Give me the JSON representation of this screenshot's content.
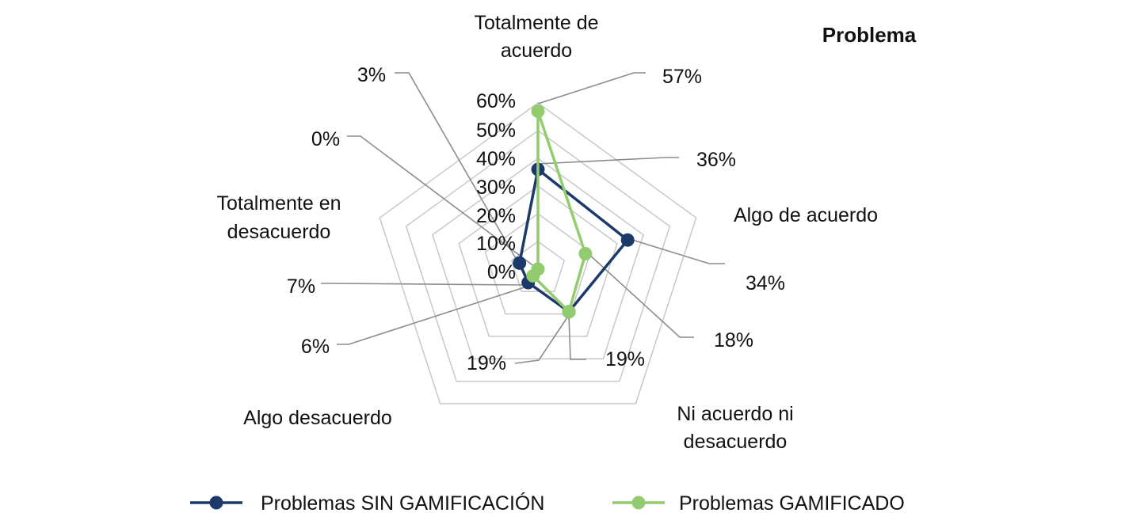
{
  "chart_data": {
    "type": "radar",
    "title": "Problema",
    "categories": [
      "Totalmente de acuerdo",
      "Algo de acuerdo",
      "Ni acuerdo ni desacuerdo",
      "Algo desacuerdo",
      "Totalmente en desacuerdo"
    ],
    "series": [
      {
        "name": "Problemas SIN GAMIFICACIÓN",
        "values": [
          36,
          34,
          19,
          6,
          7
        ],
        "data_labels": [
          "36%",
          "34%",
          "19%",
          "6%",
          "7%"
        ],
        "color": "#1b3a6b"
      },
      {
        "name": "Problemas GAMIFICADO",
        "values": [
          57,
          18,
          19,
          3,
          0
        ],
        "data_labels": [
          "57%",
          "18%",
          "19%",
          "3%",
          "0%"
        ],
        "color": "#92cc6f"
      }
    ],
    "r_axis": {
      "range": [
        0,
        60
      ],
      "ticks": [
        "0%",
        "10%",
        "20%",
        "30%",
        "40%",
        "50%",
        "60%"
      ]
    },
    "grid": true,
    "legend_position": "bottom"
  },
  "colors": {
    "grid": "#c8c8c8",
    "leader": "#8c8c8c",
    "text": "#111111"
  }
}
